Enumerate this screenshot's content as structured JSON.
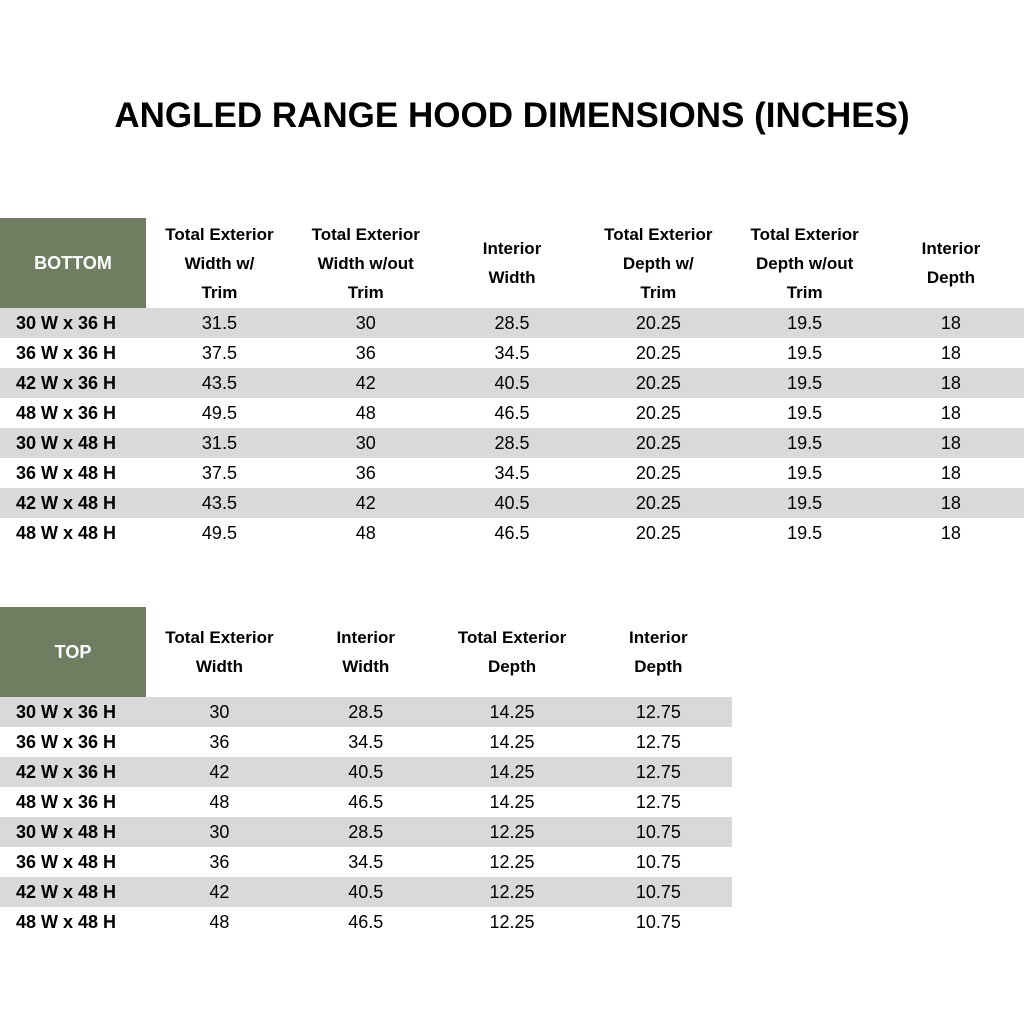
{
  "title": "ANGLED RANGE HOOD DIMENSIONS (INCHES)",
  "tables": [
    {
      "label": "BOTTOM",
      "columns": [
        [
          "Total Exterior",
          "Width w/",
          "Trim"
        ],
        [
          "Total Exterior",
          "Width w/out",
          "Trim"
        ],
        [
          "Interior",
          "Width"
        ],
        [
          "Total Exterior",
          "Depth w/",
          "Trim"
        ],
        [
          "Total Exterior",
          "Depth w/out",
          "Trim"
        ],
        [
          "Interior",
          "Depth"
        ]
      ],
      "rows": [
        [
          "30 W x 36 H",
          "31.5",
          "30",
          "28.5",
          "20.25",
          "19.5",
          "18"
        ],
        [
          "36 W x 36 H",
          "37.5",
          "36",
          "34.5",
          "20.25",
          "19.5",
          "18"
        ],
        [
          "42 W x 36 H",
          "43.5",
          "42",
          "40.5",
          "20.25",
          "19.5",
          "18"
        ],
        [
          "48 W x 36 H",
          "49.5",
          "48",
          "46.5",
          "20.25",
          "19.5",
          "18"
        ],
        [
          "30 W x 48 H",
          "31.5",
          "30",
          "28.5",
          "20.25",
          "19.5",
          "18"
        ],
        [
          "36 W x 48 H",
          "37.5",
          "36",
          "34.5",
          "20.25",
          "19.5",
          "18"
        ],
        [
          "42 W x 48 H",
          "43.5",
          "42",
          "40.5",
          "20.25",
          "19.5",
          "18"
        ],
        [
          "48 W x 48 H",
          "49.5",
          "48",
          "46.5",
          "20.25",
          "19.5",
          "18"
        ]
      ]
    },
    {
      "label": "TOP",
      "columns": [
        [
          "Total Exterior",
          "Width"
        ],
        [
          "Interior",
          "Width"
        ],
        [
          "Total Exterior",
          "Depth"
        ],
        [
          "Interior",
          "Depth"
        ]
      ],
      "rows": [
        [
          "30 W x 36 H",
          "30",
          "28.5",
          "14.25",
          "12.75"
        ],
        [
          "36 W x 36 H",
          "36",
          "34.5",
          "14.25",
          "12.75"
        ],
        [
          "42 W x 36 H",
          "42",
          "40.5",
          "14.25",
          "12.75"
        ],
        [
          "48 W x 36 H",
          "48",
          "46.5",
          "14.25",
          "12.75"
        ],
        [
          "30 W x 48 H",
          "30",
          "28.5",
          "12.25",
          "10.75"
        ],
        [
          "36 W x 48 H",
          "36",
          "34.5",
          "12.25",
          "10.75"
        ],
        [
          "42 W x 48 H",
          "42",
          "40.5",
          "12.25",
          "10.75"
        ],
        [
          "48 W x 48 H",
          "48",
          "46.5",
          "12.25",
          "10.75"
        ]
      ]
    }
  ]
}
